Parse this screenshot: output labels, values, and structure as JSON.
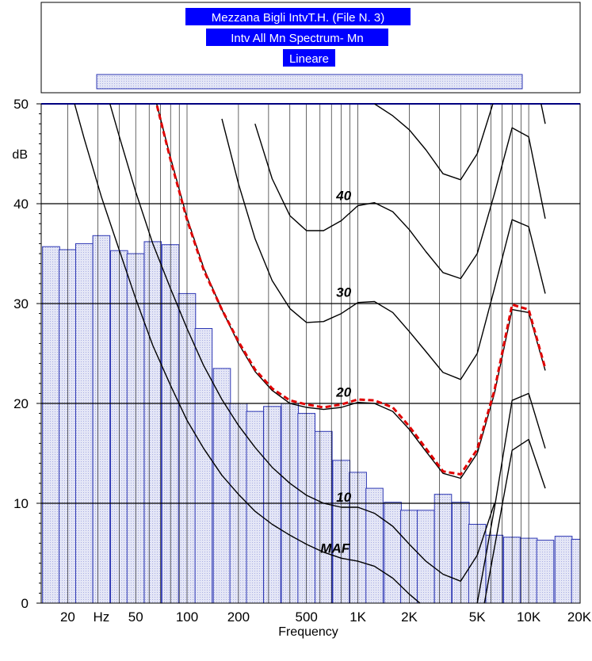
{
  "chart_data": {
    "type": "bar",
    "title_lines": [
      "Mezzana Bigli IntvT.H. (File N. 3)",
      "Intv All Mn Spectrum- Mn",
      "Lineare"
    ],
    "xlabel": "Frequency",
    "ylabel": "dB",
    "x_scale": "log",
    "xlim": [
      14,
      20000
    ],
    "ylim": [
      0,
      50
    ],
    "grid": true,
    "x_tick_labels": [
      {
        "value": 20,
        "label": "20"
      },
      {
        "value": 31.5,
        "label": "Hz"
      },
      {
        "value": 50,
        "label": "50"
      },
      {
        "value": 100,
        "label": "100"
      },
      {
        "value": 200,
        "label": "200"
      },
      {
        "value": 500,
        "label": "500"
      },
      {
        "value": 1000,
        "label": "1K"
      },
      {
        "value": 2000,
        "label": "2K"
      },
      {
        "value": 5000,
        "label": "5K"
      },
      {
        "value": 10000,
        "label": "10K"
      },
      {
        "value": 20000,
        "label": "20K"
      }
    ],
    "y_tick_labels": [
      {
        "value": 0,
        "label": "0"
      },
      {
        "value": 10,
        "label": "10"
      },
      {
        "value": 20,
        "label": "20"
      },
      {
        "value": 30,
        "label": "30"
      },
      {
        "value": 40,
        "label": "40"
      },
      {
        "value": 50,
        "label": "50"
      }
    ],
    "bars": {
      "x": [
        16,
        20,
        25,
        31.5,
        40,
        50,
        63,
        80,
        100,
        125,
        160,
        200,
        250,
        315,
        400,
        500,
        630,
        800,
        1000,
        1250,
        1600,
        2000,
        2500,
        3150,
        4000,
        5000,
        6300,
        8000,
        10000,
        12500,
        16000,
        20000
      ],
      "values": [
        35.7,
        35.4,
        36.0,
        36.8,
        35.3,
        35.0,
        36.2,
        35.9,
        31.0,
        27.5,
        23.5,
        20.0,
        19.2,
        19.7,
        20.0,
        19.0,
        17.2,
        14.3,
        13.1,
        11.5,
        10.1,
        9.3,
        9.3,
        10.9,
        10.1,
        7.9,
        6.8,
        6.6,
        6.5,
        6.3,
        6.7,
        6.4
      ]
    },
    "phon_curves": [
      {
        "label": "MAF",
        "x": [
          20,
          25,
          31.5,
          40,
          50,
          63,
          80,
          100,
          125,
          160,
          200,
          250,
          315,
          400,
          500,
          630,
          800,
          1000,
          1250,
          1600,
          2000,
          2500
        ],
        "y": [
          52.5,
          46.5,
          40.7,
          35.4,
          30.5,
          25.8,
          21.8,
          18.3,
          15.5,
          12.8,
          10.9,
          9.2,
          7.9,
          6.8,
          5.9,
          5.1,
          4.5,
          4.2,
          3.7,
          2.5,
          0.9,
          -0.5
        ]
      },
      {
        "label": "10",
        "x": [
          31.5,
          40,
          50,
          63,
          80,
          100,
          125,
          160,
          200,
          250,
          315,
          400,
          500,
          630,
          800,
          1000,
          1250,
          1600,
          2000,
          2500,
          3150,
          4000,
          5000,
          6300
        ],
        "y": [
          53.0,
          46.8,
          41.2,
          36.0,
          31.5,
          27.5,
          23.8,
          20.4,
          17.8,
          15.6,
          13.6,
          12.0,
          10.8,
          10.0,
          9.6,
          9.6,
          9.0,
          7.7,
          5.9,
          4.2,
          2.9,
          2.2,
          4.8,
          10.0
        ]
      },
      {
        "label": "",
        "x": [
          5500,
          8000,
          10000,
          12500
        ],
        "y": [
          0,
          15.3,
          16.4,
          11.5
        ]
      },
      {
        "label": "",
        "x": [
          5000,
          6300,
          8000,
          10000,
          12500
        ],
        "y": [
          0,
          9.5,
          20.3,
          21.0,
          15.5
        ]
      },
      {
        "label": "20",
        "x": [
          63,
          80,
          100,
          125,
          160,
          200,
          250,
          315,
          400,
          500,
          630,
          800,
          1000,
          1250,
          1600,
          2000,
          2500,
          3150,
          4000,
          5000,
          6300,
          8000,
          10000,
          12500
        ],
        "y": [
          51.5,
          44.6,
          38.6,
          33.6,
          29.4,
          26.0,
          23.2,
          21.3,
          20.0,
          19.6,
          19.4,
          19.6,
          20.1,
          20.0,
          19.2,
          17.4,
          15.2,
          13.0,
          12.5,
          15.0,
          21.0,
          29.4,
          29.1,
          23.3
        ]
      },
      {
        "label": "30",
        "x": [
          160,
          200,
          250,
          315,
          400,
          500,
          630,
          800,
          1000,
          1250,
          1600,
          2000,
          2500,
          3150,
          4000,
          5000,
          6300,
          8000,
          10000,
          12500
        ],
        "y": [
          48.5,
          42.0,
          36.5,
          32.3,
          29.5,
          28.1,
          28.2,
          29.0,
          30.1,
          30.2,
          29.1,
          27.2,
          25.2,
          23.1,
          22.4,
          25.0,
          31.5,
          38.4,
          37.7,
          31.0
        ]
      },
      {
        "label": "40",
        "x": [
          250,
          315,
          400,
          500,
          630,
          800,
          1000,
          1250,
          1600,
          2000,
          2500,
          3150,
          4000,
          5000,
          6300,
          8000,
          10000,
          12500
        ],
        "y": [
          48.0,
          42.5,
          38.8,
          37.3,
          37.3,
          38.3,
          39.8,
          40.1,
          39.2,
          37.4,
          35.2,
          33.1,
          32.5,
          35.0,
          41.0,
          47.6,
          46.7,
          38.5
        ]
      },
      {
        "label": "",
        "x": [
          800,
          1000,
          1250,
          1600,
          2000,
          2500,
          3150,
          4000,
          5000,
          6300,
          8000,
          10000,
          12500
        ],
        "y": [
          53.0,
          51.5,
          50.0,
          48.8,
          47.4,
          45.4,
          43.0,
          42.4,
          45.0,
          50.5,
          56.0,
          56.0,
          48.0
        ]
      }
    ],
    "highlight_curve": {
      "color": "#e00000",
      "x": [
        63,
        80,
        100,
        125,
        160,
        200,
        250,
        315,
        400,
        500,
        630,
        800,
        1000,
        1250,
        1600,
        2000,
        2500,
        3150,
        4000,
        5000,
        6300,
        8000,
        10000,
        12500
      ],
      "y": [
        51.5,
        44.4,
        38.4,
        33.4,
        29.4,
        26.2,
        23.4,
        21.5,
        20.3,
        19.9,
        19.6,
        19.9,
        20.4,
        20.3,
        19.6,
        17.7,
        15.5,
        13.2,
        12.9,
        15.4,
        21.3,
        29.9,
        29.4,
        23.5
      ]
    }
  },
  "colors": {
    "bar_fill": "#e4e6f6",
    "bar_stroke": "#2b35b3",
    "title_bg": "#0000ff",
    "grid": "#000000",
    "highlight": "#e00000"
  }
}
